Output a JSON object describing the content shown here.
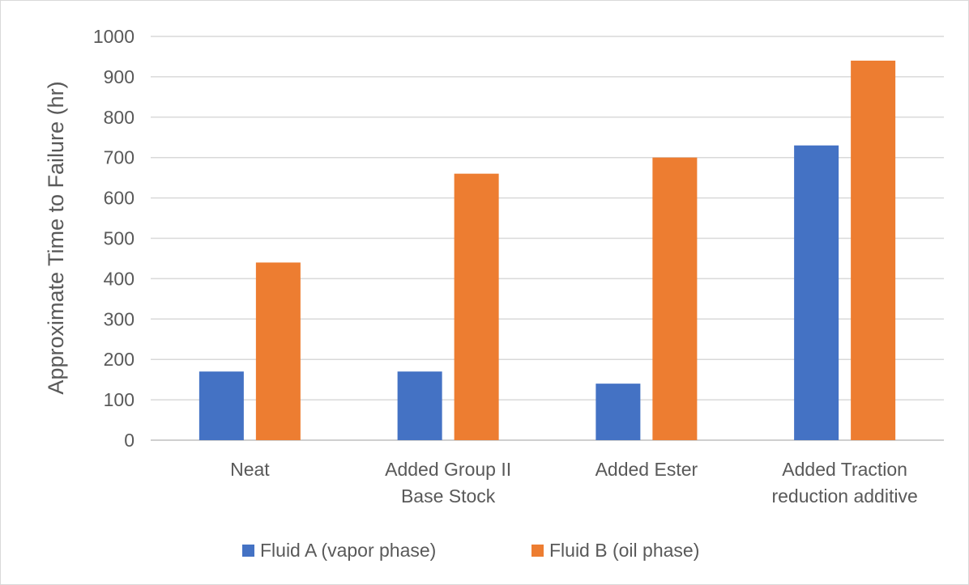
{
  "chart_data": {
    "type": "bar",
    "title": "",
    "xlabel": "",
    "ylabel": "Approximate Time to Failure (hr)",
    "ylim": [
      0,
      1000
    ],
    "yticks": [
      0,
      100,
      200,
      300,
      400,
      500,
      600,
      700,
      800,
      900,
      1000
    ],
    "grid": true,
    "legend_position": "bottom",
    "categories": [
      [
        "Neat"
      ],
      [
        "Added Group II",
        "Base Stock"
      ],
      [
        "Added Ester"
      ],
      [
        "Added Traction",
        "reduction additive"
      ]
    ],
    "series": [
      {
        "name": "Fluid A (vapor phase)",
        "color": "#4472c4",
        "values": [
          170,
          170,
          140,
          730
        ]
      },
      {
        "name": "Fluid B (oil phase)",
        "color": "#ed7d31",
        "values": [
          440,
          660,
          700,
          940
        ]
      }
    ]
  }
}
